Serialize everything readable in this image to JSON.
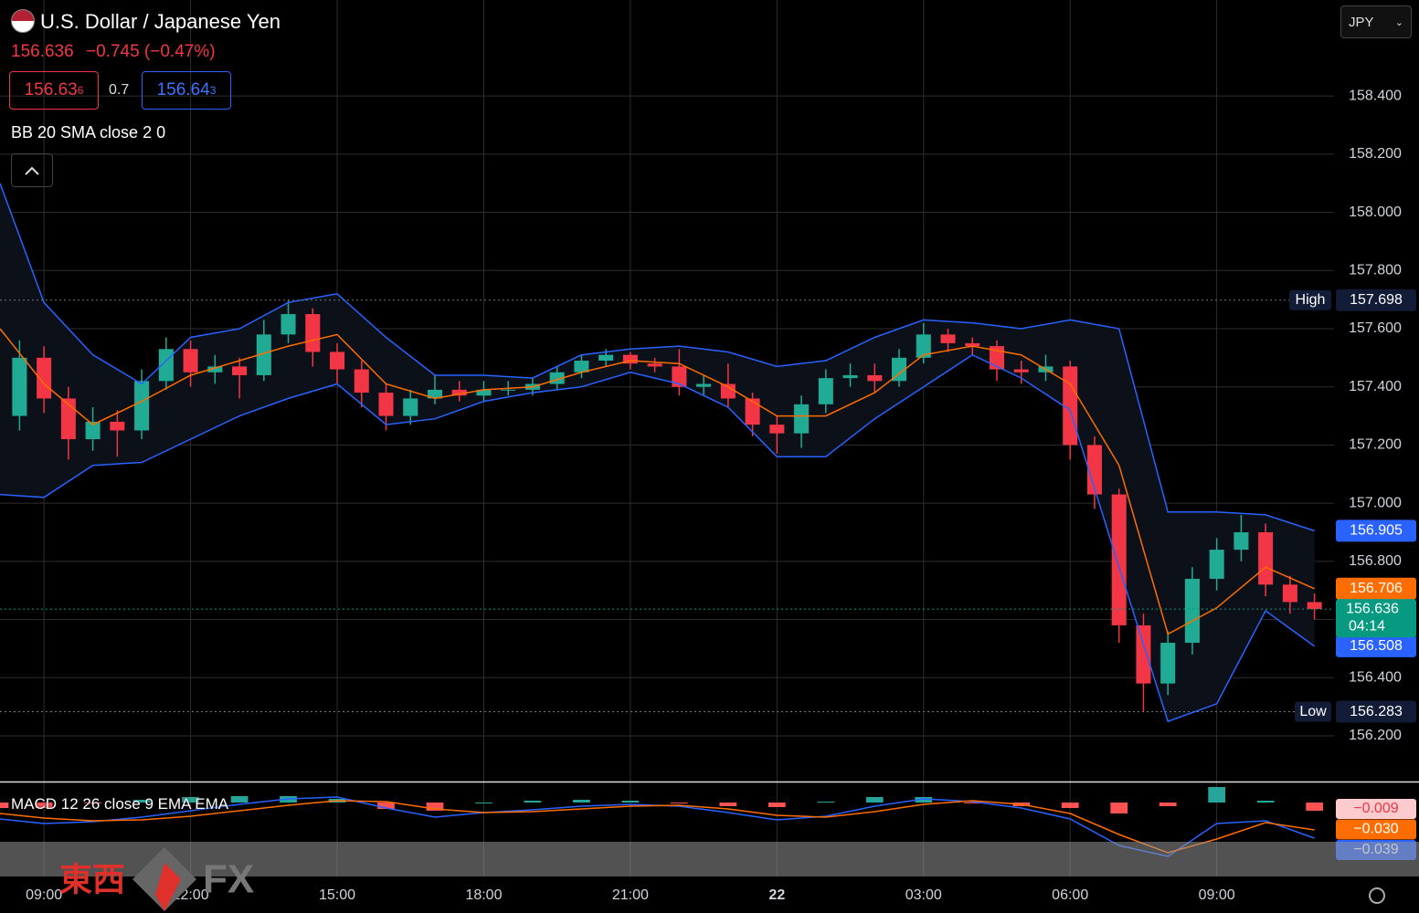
{
  "chart_data": {
    "type": "candlestick",
    "title": "U.S. Dollar / Japanese Yen",
    "last": "156.636",
    "change": "−0.745 (−0.47%)",
    "bid": "156.63",
    "bid_pip": "6",
    "spread": "0.7",
    "ask": "156.64",
    "ask_pip": "3",
    "currency": "JPY",
    "bb_legend": "BB 20 SMA close 2 0",
    "macd_legend": "MACD 12 26 close 9 EMA EMA",
    "logo_text": [
      "東西",
      "FX"
    ],
    "up_color": "#22ab94",
    "down_color": "#f23645",
    "x": [
      8.5,
      9,
      9.5,
      10,
      10.5,
      11,
      11.5,
      12,
      12.5,
      13,
      13.5,
      14,
      14.5,
      15,
      15.5,
      16,
      16.5,
      17,
      17.5,
      18,
      18.5,
      19,
      19.5,
      20,
      20.5,
      21,
      21.5,
      22,
      22.5,
      23,
      23.5,
      24,
      24.5,
      25,
      25.5,
      26,
      26.5,
      27,
      27.5,
      28,
      28.5,
      29,
      29.5,
      30,
      30.5,
      31,
      31.5,
      32,
      32.5,
      33,
      33.5,
      34,
      34.5,
      35
    ],
    "open": [
      157.3,
      157.5,
      157.36,
      157.22,
      157.28,
      157.25,
      157.42,
      157.53,
      157.45,
      157.47,
      157.44,
      157.58,
      157.65,
      157.52,
      157.46,
      157.38,
      157.3,
      157.36,
      157.39,
      157.37,
      157.39,
      157.39,
      157.41,
      157.45,
      157.49,
      157.51,
      157.48,
      157.47,
      157.4,
      157.41,
      157.36,
      157.27,
      157.24,
      157.34,
      157.43,
      157.44,
      157.42,
      157.5,
      157.58,
      157.55,
      157.54,
      157.46,
      157.45,
      157.47,
      157.2,
      157.03,
      156.58,
      156.38,
      156.52,
      156.74,
      156.84,
      156.9,
      156.72,
      156.66
    ],
    "high": [
      157.56,
      157.54,
      157.4,
      157.33,
      157.32,
      157.46,
      157.57,
      157.56,
      157.51,
      157.5,
      157.63,
      157.698,
      157.67,
      157.55,
      157.49,
      157.41,
      157.39,
      157.44,
      157.42,
      157.42,
      157.42,
      157.43,
      157.47,
      157.51,
      157.53,
      157.52,
      157.5,
      157.53,
      157.44,
      157.48,
      157.38,
      157.3,
      157.37,
      157.46,
      157.48,
      157.48,
      157.53,
      157.62,
      157.6,
      157.57,
      157.56,
      157.49,
      157.51,
      157.49,
      157.23,
      157.05,
      156.62,
      156.56,
      156.78,
      156.88,
      156.96,
      156.93,
      156.75,
      156.69
    ],
    "low": [
      157.25,
      157.31,
      157.15,
      157.18,
      157.16,
      157.22,
      157.39,
      157.4,
      157.41,
      157.36,
      157.42,
      157.55,
      157.47,
      157.41,
      157.33,
      157.25,
      157.27,
      157.34,
      157.35,
      157.35,
      157.37,
      157.37,
      157.39,
      157.43,
      157.47,
      157.46,
      157.45,
      157.37,
      157.37,
      157.33,
      157.23,
      157.17,
      157.19,
      157.31,
      157.4,
      157.38,
      157.4,
      157.48,
      157.52,
      157.51,
      157.42,
      157.41,
      157.42,
      157.15,
      156.98,
      156.52,
      156.283,
      156.34,
      156.48,
      156.7,
      156.8,
      156.68,
      156.62,
      156.6
    ],
    "close": [
      157.5,
      157.36,
      157.22,
      157.28,
      157.25,
      157.42,
      157.53,
      157.45,
      157.47,
      157.44,
      157.58,
      157.65,
      157.52,
      157.46,
      157.38,
      157.3,
      157.36,
      157.39,
      157.37,
      157.39,
      157.39,
      157.41,
      157.45,
      157.49,
      157.51,
      157.48,
      157.47,
      157.4,
      157.41,
      157.36,
      157.27,
      157.24,
      157.34,
      157.43,
      157.44,
      157.42,
      157.5,
      157.58,
      157.55,
      157.54,
      157.46,
      157.45,
      157.47,
      157.2,
      157.03,
      156.58,
      156.38,
      156.52,
      156.74,
      156.84,
      156.9,
      156.72,
      156.66,
      156.636
    ],
    "countdown": "04:14",
    "current_color": "#089981",
    "bands": {
      "x": [
        8.1,
        9,
        10,
        11,
        12,
        13,
        14,
        15,
        16,
        17,
        18,
        19,
        20,
        21,
        22,
        23,
        24,
        25,
        26,
        27,
        28,
        29,
        30,
        31,
        32,
        33,
        34,
        35
      ],
      "upper": [
        158.1,
        157.69,
        157.51,
        157.41,
        157.57,
        157.6,
        157.69,
        157.72,
        157.57,
        157.44,
        157.44,
        157.43,
        157.51,
        157.53,
        157.54,
        157.52,
        157.47,
        157.49,
        157.57,
        157.63,
        157.62,
        157.6,
        157.63,
        157.6,
        156.97,
        156.97,
        156.96,
        156.905
      ],
      "middle": [
        157.6,
        157.41,
        157.27,
        157.35,
        157.44,
        157.49,
        157.54,
        157.58,
        157.41,
        157.36,
        157.39,
        157.4,
        157.45,
        157.49,
        157.48,
        157.4,
        157.3,
        157.3,
        157.38,
        157.51,
        157.54,
        157.51,
        157.41,
        157.13,
        156.55,
        156.64,
        156.78,
        156.706
      ],
      "lower": [
        157.03,
        157.02,
        157.13,
        157.14,
        157.22,
        157.3,
        157.36,
        157.41,
        157.27,
        157.29,
        157.35,
        157.38,
        157.4,
        157.45,
        157.41,
        157.33,
        157.16,
        157.16,
        157.29,
        157.4,
        157.51,
        157.43,
        157.32,
        156.78,
        156.25,
        156.31,
        156.63,
        156.508
      ],
      "band_color": "#2962ff",
      "middle_color": "#ff6d00",
      "fill": "#0c1018"
    },
    "markers": [
      {
        "label": "High",
        "value": 157.698
      },
      {
        "label": "Low",
        "value": 156.283
      }
    ],
    "xlim": [
      8.1,
      35.4
    ],
    "xticks": [
      {
        "value": 9,
        "label": "09:00"
      },
      {
        "value": 12,
        "label": "12:00"
      },
      {
        "value": 15,
        "label": "15:00"
      },
      {
        "value": 18,
        "label": "18:00"
      },
      {
        "value": 21,
        "label": "21:00"
      },
      {
        "value": 24,
        "label": "22"
      },
      {
        "value": 27,
        "label": "03:00"
      },
      {
        "value": 30,
        "label": "06:00"
      },
      {
        "value": 33,
        "label": "09:00"
      }
    ],
    "ylim": [
      156.043,
      158.73
    ],
    "yticks": [
      {
        "value": 156.2,
        "label": "156.200"
      },
      {
        "value": 156.4,
        "label": "156.400"
      },
      {
        "value": 156.6,
        "label": "156.600"
      },
      {
        "value": 156.8,
        "label": "156.800"
      },
      {
        "value": 157.0,
        "label": "157.000"
      },
      {
        "value": 157.2,
        "label": "157.200"
      },
      {
        "value": 157.4,
        "label": "157.400"
      },
      {
        "value": 157.6,
        "label": "157.600"
      },
      {
        "value": 157.8,
        "label": "157.800"
      },
      {
        "value": 158.0,
        "label": "158.000"
      },
      {
        "value": 158.2,
        "label": "158.200"
      },
      {
        "value": 158.4,
        "label": "158.400"
      }
    ],
    "grid": true,
    "macd": {
      "ylim": [
        -0.066,
        0.019
      ],
      "macd": [
        -0.018,
        -0.023,
        -0.021,
        -0.016,
        -0.009,
        -0.002,
        0.004,
        0.006,
        -0.006,
        -0.016,
        -0.011,
        -0.008,
        -0.004,
        -0.002,
        -0.004,
        -0.011,
        -0.019,
        -0.015,
        -0.004,
        0.004,
        0.001,
        -0.006,
        -0.018,
        -0.047,
        -0.059,
        -0.023,
        -0.02,
        -0.039
      ],
      "signal": [
        -0.012,
        -0.017,
        -0.02,
        -0.019,
        -0.015,
        -0.009,
        -0.003,
        0.002,
        0.001,
        -0.007,
        -0.011,
        -0.01,
        -0.007,
        -0.004,
        -0.003,
        -0.007,
        -0.014,
        -0.016,
        -0.01,
        -0.002,
        0.002,
        -0.002,
        -0.012,
        -0.035,
        -0.055,
        -0.04,
        -0.022,
        -0.03
      ],
      "histogram": [
        -0.006,
        -0.006,
        -0.001,
        0.003,
        0.006,
        0.007,
        0.007,
        0.004,
        -0.007,
        -0.009,
        0,
        0.002,
        0.003,
        0.002,
        -0.001,
        -0.004,
        -0.005,
        0.001,
        0.006,
        0.006,
        -0.001,
        -0.004,
        -0.006,
        -0.012,
        -0.004,
        0.017,
        0.002,
        -0.009
      ],
      "value_labels": {
        "histogram": "−0.009",
        "signal": "−0.030",
        "macd": "−0.039"
      },
      "macd_color": "#2962ff",
      "signal_color": "#ff6d00",
      "up_color": "#26a69a",
      "down_color": "#ff5252"
    }
  }
}
